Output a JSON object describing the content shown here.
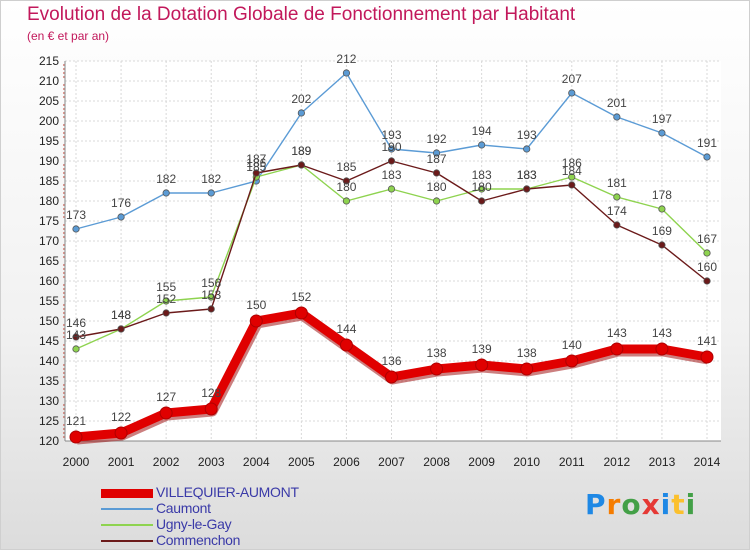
{
  "chart_data": {
    "type": "line",
    "title": "Evolution de la Dotation Globale de Fonctionnement par Habitant",
    "subtitle": "(en € et par an)",
    "x": [
      "2000",
      "2001",
      "2002",
      "2003",
      "2004",
      "2005",
      "2006",
      "2007",
      "2008",
      "2009",
      "2010",
      "2011",
      "2012",
      "2013",
      "2014"
    ],
    "ylim": [
      120,
      215
    ],
    "yticks": [
      120,
      125,
      130,
      135,
      140,
      145,
      150,
      155,
      160,
      165,
      170,
      175,
      180,
      185,
      190,
      195,
      200,
      205,
      210,
      215
    ],
    "grid": true,
    "legend_position": "bottom-left",
    "series": [
      {
        "name": "VILLEQUIER-AUMONT",
        "color": "#e00000",
        "values": [
          121,
          122,
          127,
          128,
          150,
          152,
          144,
          136,
          138,
          139,
          138,
          140,
          143,
          143,
          141
        ]
      },
      {
        "name": "Caumont",
        "color": "#5b9bd5",
        "values": [
          173,
          176,
          182,
          182,
          185,
          202,
          212,
          193,
          192,
          194,
          193,
          207,
          201,
          197,
          191
        ]
      },
      {
        "name": "Ugny-le-Gay",
        "color": "#8ed34f",
        "values": [
          143,
          148,
          155,
          156,
          186,
          189,
          180,
          183,
          180,
          183,
          183,
          186,
          181,
          178,
          167
        ]
      },
      {
        "name": "Commenchon",
        "color": "#6b1a1a",
        "values": [
          146,
          148,
          152,
          153,
          187,
          189,
          185,
          190,
          187,
          180,
          183,
          184,
          174,
          169,
          160
        ]
      }
    ]
  },
  "logo": {
    "letters": [
      "P",
      "r",
      "o",
      "x",
      "i",
      "t",
      "i"
    ],
    "colors": [
      "#1e88e5",
      "#f57c00",
      "#43a047",
      "#e53935",
      "#1e88e5",
      "#fbc02d",
      "#43a047"
    ]
  }
}
